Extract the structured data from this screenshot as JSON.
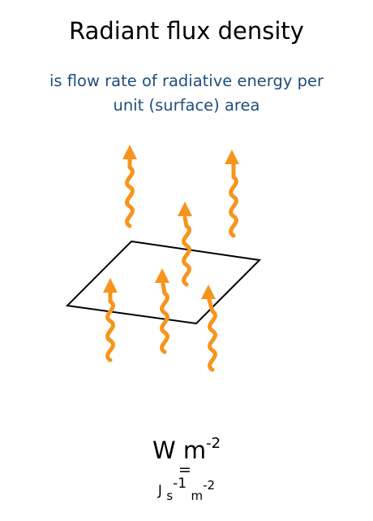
{
  "title": "Radiant flux density",
  "subtitle_line1": "is flow rate of radiative energy per",
  "subtitle_line2": "unit (surface) area",
  "unit": {
    "base": "W m",
    "exponent": "-2"
  },
  "equals": "=",
  "unit_alt": {
    "j": "J",
    "s": "s",
    "s_exp": "-1",
    "m": "m",
    "m_exp": "-2"
  },
  "colors": {
    "subtitle": "#1f4e79",
    "arrow": "#f7941d",
    "outline": "#000000"
  },
  "icons": [
    "wavy-arrow-icon"
  ]
}
